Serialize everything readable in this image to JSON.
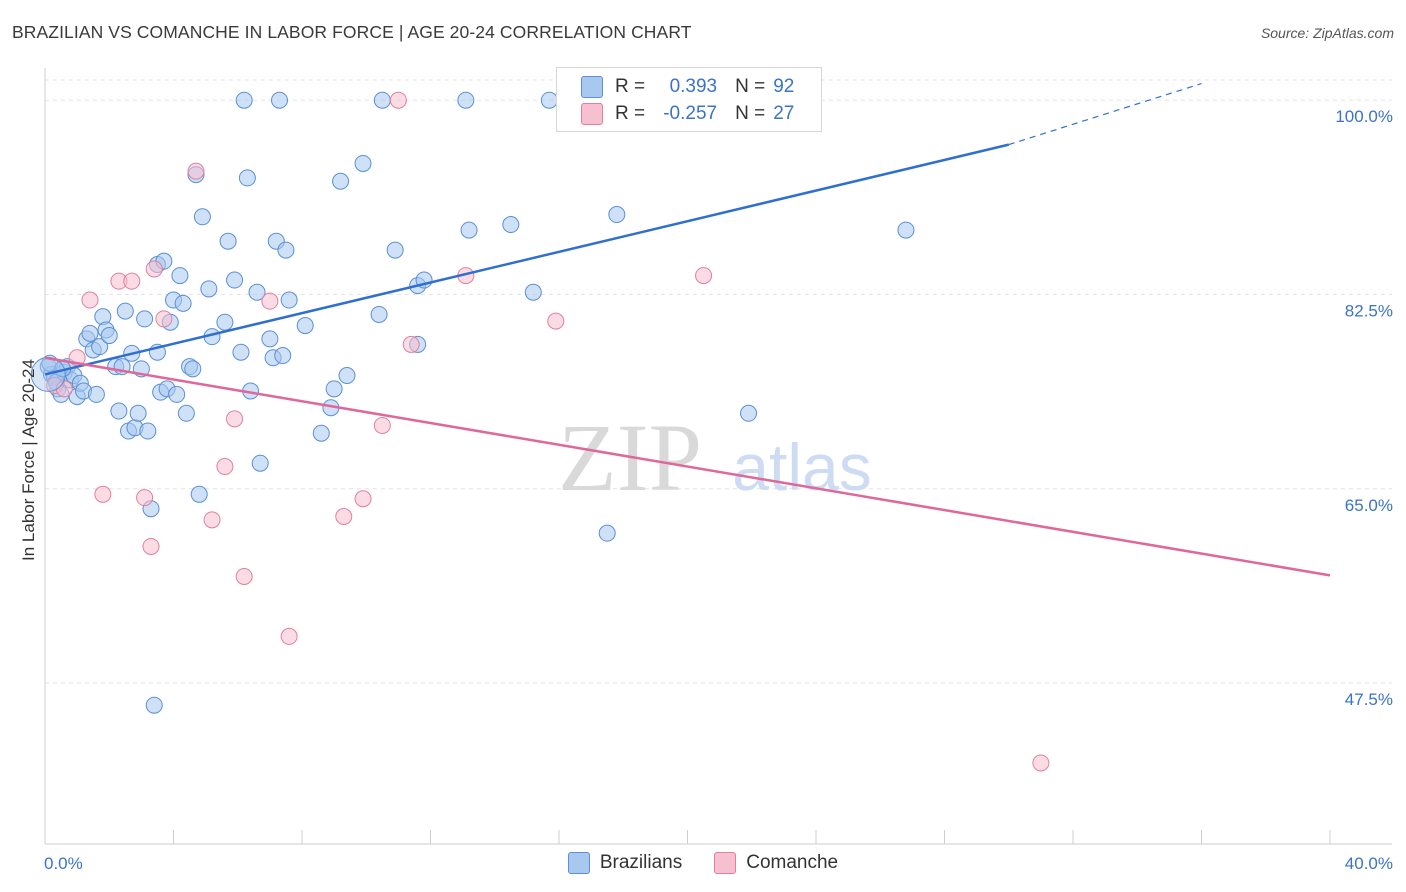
{
  "title": "BRAZILIAN VS COMANCHE IN LABOR FORCE | AGE 20-24 CORRELATION CHART",
  "source": "Source: ZipAtlas.com",
  "watermark": {
    "zip": "ZIP",
    "atlas": "atlas"
  },
  "legend": {
    "r_label": "R =",
    "n_label": "N =",
    "rows": [
      {
        "r": "0.393",
        "n": "92",
        "color": "#a8c8f0",
        "border": "#5b8fd6"
      },
      {
        "r": "-0.257",
        "n": "27",
        "color": "#f7c0d0",
        "border": "#e0809c"
      }
    ]
  },
  "bottom_legend": [
    "Brazilians",
    "Comanche"
  ],
  "chart_data": {
    "type": "scatter",
    "title": "BRAZILIAN VS COMANCHE IN LABOR FORCE | AGE 20-24 CORRELATION CHART",
    "xlabel": "",
    "ylabel": "In Labor Force | Age 20-24",
    "xlim": [
      0,
      40
    ],
    "ylim": [
      33,
      102
    ],
    "x_tick_labels": [
      "0.0%",
      "40.0%"
    ],
    "y_ticks": [
      47.5,
      65.0,
      82.5,
      100.0
    ],
    "y_tick_labels": [
      "47.5%",
      "65.0%",
      "82.5%",
      "100.0%"
    ],
    "series": [
      {
        "name": "Brazilians",
        "color": "#a8c8f0",
        "stroke": "#5b8fd6",
        "trend": {
          "x0": 0,
          "y0": 75.3,
          "x1": 30.0,
          "y1": 96.0,
          "dash_to_x": 36.0,
          "dash_to_y": 101.5,
          "color": "#2f6fd0"
        },
        "points": [
          [
            0.1,
            76.0
          ],
          [
            0.2,
            75.3
          ],
          [
            0.3,
            75.0
          ],
          [
            0.4,
            74.0
          ],
          [
            0.5,
            73.5
          ],
          [
            0.6,
            75.5
          ],
          [
            0.7,
            76.0
          ],
          [
            0.8,
            74.8
          ],
          [
            0.9,
            75.2
          ],
          [
            1.0,
            73.3
          ],
          [
            1.1,
            74.5
          ],
          [
            1.2,
            73.8
          ],
          [
            1.3,
            78.5
          ],
          [
            1.4,
            79.0
          ],
          [
            1.5,
            77.5
          ],
          [
            1.6,
            73.5
          ],
          [
            1.7,
            77.8
          ],
          [
            1.8,
            80.5
          ],
          [
            1.9,
            79.3
          ],
          [
            2.0,
            78.8
          ],
          [
            2.2,
            76.0
          ],
          [
            2.3,
            72.0
          ],
          [
            2.4,
            76.0
          ],
          [
            2.5,
            81.0
          ],
          [
            2.6,
            70.2
          ],
          [
            2.7,
            77.2
          ],
          [
            2.8,
            70.5
          ],
          [
            2.9,
            71.8
          ],
          [
            3.0,
            75.8
          ],
          [
            3.1,
            80.3
          ],
          [
            3.2,
            70.2
          ],
          [
            3.3,
            63.2
          ],
          [
            3.4,
            45.5
          ],
          [
            3.5,
            77.3
          ],
          [
            3.5,
            85.2
          ],
          [
            3.6,
            73.7
          ],
          [
            3.7,
            85.5
          ],
          [
            3.8,
            74.0
          ],
          [
            3.9,
            80.0
          ],
          [
            4.0,
            82.0
          ],
          [
            4.1,
            73.5
          ],
          [
            4.2,
            84.2
          ],
          [
            4.3,
            81.7
          ],
          [
            4.4,
            71.8
          ],
          [
            4.5,
            76.0
          ],
          [
            4.6,
            75.8
          ],
          [
            4.7,
            93.3
          ],
          [
            4.8,
            64.5
          ],
          [
            4.9,
            89.5
          ],
          [
            5.1,
            83.0
          ],
          [
            5.2,
            78.7
          ],
          [
            5.6,
            80.0
          ],
          [
            5.7,
            87.3
          ],
          [
            5.9,
            83.8
          ],
          [
            6.1,
            77.3
          ],
          [
            6.2,
            100.0
          ],
          [
            6.3,
            93.0
          ],
          [
            6.4,
            73.8
          ],
          [
            6.6,
            82.7
          ],
          [
            6.7,
            67.3
          ],
          [
            7.0,
            78.5
          ],
          [
            7.1,
            76.8
          ],
          [
            7.2,
            87.3
          ],
          [
            7.3,
            100.0
          ],
          [
            7.4,
            77.0
          ],
          [
            7.5,
            86.5
          ],
          [
            7.6,
            82.0
          ],
          [
            8.1,
            79.7
          ],
          [
            8.6,
            70.0
          ],
          [
            8.9,
            72.3
          ],
          [
            9.0,
            74.0
          ],
          [
            9.2,
            92.7
          ],
          [
            9.4,
            75.2
          ],
          [
            9.9,
            94.3
          ],
          [
            10.5,
            100.0
          ],
          [
            10.4,
            80.7
          ],
          [
            10.9,
            86.5
          ],
          [
            11.6,
            83.3
          ],
          [
            11.8,
            83.8
          ],
          [
            11.6,
            78.0
          ],
          [
            13.1,
            100.0
          ],
          [
            13.2,
            88.3
          ],
          [
            14.5,
            88.8
          ],
          [
            15.2,
            82.7
          ],
          [
            15.7,
            100.0
          ],
          [
            17.8,
            89.7
          ],
          [
            17.5,
            61.0
          ],
          [
            21.9,
            71.8
          ],
          [
            26.8,
            88.3
          ],
          [
            0.15,
            76.3
          ],
          [
            0.35,
            74.6
          ],
          [
            0.55,
            75.8
          ]
        ]
      },
      {
        "name": "Comanche",
        "color": "#f7c0d0",
        "stroke": "#e0809c",
        "trend": {
          "x0": 0,
          "y0": 76.8,
          "x1": 40.0,
          "y1": 57.2,
          "color": "#e0679a"
        },
        "points": [
          [
            0.3,
            74.3
          ],
          [
            1.0,
            76.8
          ],
          [
            1.4,
            82.0
          ],
          [
            1.8,
            64.5
          ],
          [
            2.3,
            83.7
          ],
          [
            2.7,
            83.7
          ],
          [
            3.1,
            64.2
          ],
          [
            3.3,
            59.8
          ],
          [
            3.4,
            84.8
          ],
          [
            3.7,
            80.3
          ],
          [
            4.7,
            93.6
          ],
          [
            5.2,
            62.2
          ],
          [
            5.6,
            67.0
          ],
          [
            5.9,
            71.3
          ],
          [
            6.2,
            57.1
          ],
          [
            7.0,
            81.9
          ],
          [
            7.6,
            51.7
          ],
          [
            9.3,
            62.5
          ],
          [
            9.9,
            64.1
          ],
          [
            10.5,
            70.7
          ],
          [
            11.0,
            100.0
          ],
          [
            11.4,
            78.0
          ],
          [
            13.1,
            84.2
          ],
          [
            15.9,
            80.1
          ],
          [
            20.5,
            84.2
          ],
          [
            31.0,
            40.3
          ],
          [
            0.6,
            74.0
          ]
        ]
      }
    ]
  }
}
